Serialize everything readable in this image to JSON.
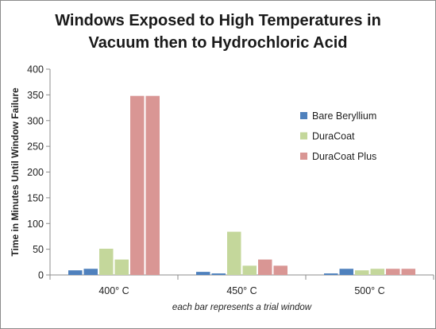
{
  "chart_data": {
    "type": "bar",
    "title_lines": [
      "Windows Exposed to High Temperatures in",
      "Vacuum then to Hydrochloric Acid"
    ],
    "ylabel": "Time in Minutes Until Window Failure",
    "xlabel": "each bar represents a trial window",
    "ylim": [
      0,
      400
    ],
    "yticks": [
      "0",
      "50",
      "100",
      "150",
      "200",
      "250",
      "300",
      "350",
      "400"
    ],
    "grid": false,
    "legend_position": "right",
    "categories": [
      "400° C",
      "450° C",
      "500° C"
    ],
    "series": [
      {
        "name": "Bare Beryllium",
        "color": "#4f81bd",
        "values": [
          [
            9,
            12
          ],
          [
            6,
            3
          ],
          [
            3,
            12
          ]
        ]
      },
      {
        "name": "DuraCoat",
        "color": "#c4d79b",
        "values": [
          [
            51,
            30
          ],
          [
            84,
            18
          ],
          [
            9,
            12
          ]
        ]
      },
      {
        "name": "DuraCoat Plus",
        "color": "#d99694",
        "values": [
          [
            348,
            348
          ],
          [
            30,
            18
          ],
          [
            12,
            12
          ]
        ]
      }
    ]
  }
}
